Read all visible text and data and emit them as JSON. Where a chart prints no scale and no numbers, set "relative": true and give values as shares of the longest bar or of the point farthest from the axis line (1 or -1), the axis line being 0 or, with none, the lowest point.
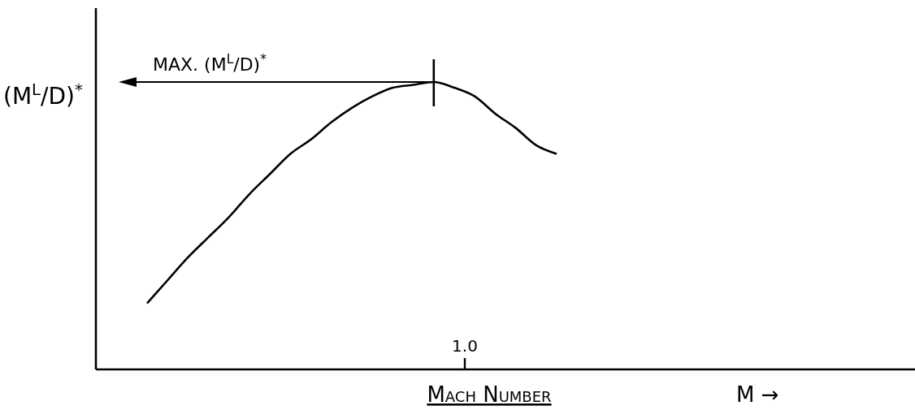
{
  "chart_data": {
    "type": "line",
    "relative": true,
    "ylabel": "(M$^{L}$/D)$^{*}$",
    "xlabel": "Mach Number",
    "categories": [
      null,
      null,
      null,
      null,
      null,
      null,
      null,
      null,
      null,
      null,
      null,
      null,
      null,
      null,
      null,
      null,
      null,
      null,
      null,
      null,
      null,
      null,
      null,
      null,
      null,
      null,
      null,
      null,
      null,
      null,
      null,
      null,
      null,
      null,
      null,
      null,
      null,
      null,
      null,
      null
    ],
    "series": [
      {
        "color": "#000000",
        "values": [
          null,
          null,
          0.23,
          0.31,
          0.39,
          0.46,
          0.53,
          0.61,
          0.68,
          0.75,
          0.8,
          0.86,
          0.91,
          0.95,
          0.98,
          0.99,
          1,
          0.98,
          0.95,
          0.89,
          0.84,
          0.78,
          0.75,
          null,
          null,
          null,
          null,
          null,
          null,
          null,
          null,
          null,
          null,
          null,
          null,
          null,
          null,
          null,
          null,
          null
        ]
      }
    ],
    "annotations": [
      "MAX. (M$^{L}$/D)$^{*}$",
      "1.0",
      "M →"
    ],
    "grid": false,
    "legend": false
  }
}
